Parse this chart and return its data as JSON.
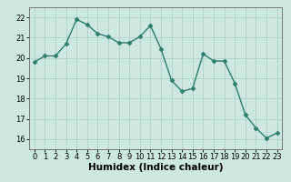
{
  "x": [
    0,
    1,
    2,
    3,
    4,
    5,
    6,
    7,
    8,
    9,
    10,
    11,
    12,
    13,
    14,
    15,
    16,
    17,
    18,
    19,
    20,
    21,
    22,
    23
  ],
  "y": [
    19.8,
    20.1,
    20.1,
    20.7,
    21.9,
    21.65,
    21.2,
    21.05,
    20.75,
    20.75,
    21.05,
    21.6,
    20.45,
    18.9,
    18.35,
    18.5,
    20.2,
    19.85,
    19.85,
    18.75,
    17.2,
    16.55,
    16.05,
    16.3
  ],
  "line_color": "#2d7d6e",
  "marker": "D",
  "marker_size": 2.5,
  "bg_color": "#cce8e0",
  "grid_color": "#b0cfc8",
  "xlabel": "Humidex (Indice chaleur)",
  "ylim": [
    15.5,
    22.5
  ],
  "xlim": [
    -0.5,
    23.5
  ],
  "yticks": [
    16,
    17,
    18,
    19,
    20,
    21,
    22
  ],
  "xticks": [
    0,
    1,
    2,
    3,
    4,
    5,
    6,
    7,
    8,
    9,
    10,
    11,
    12,
    13,
    14,
    15,
    16,
    17,
    18,
    19,
    20,
    21,
    22,
    23
  ],
  "tick_fontsize": 6,
  "xlabel_fontsize": 7.5,
  "linewidth": 1.0
}
